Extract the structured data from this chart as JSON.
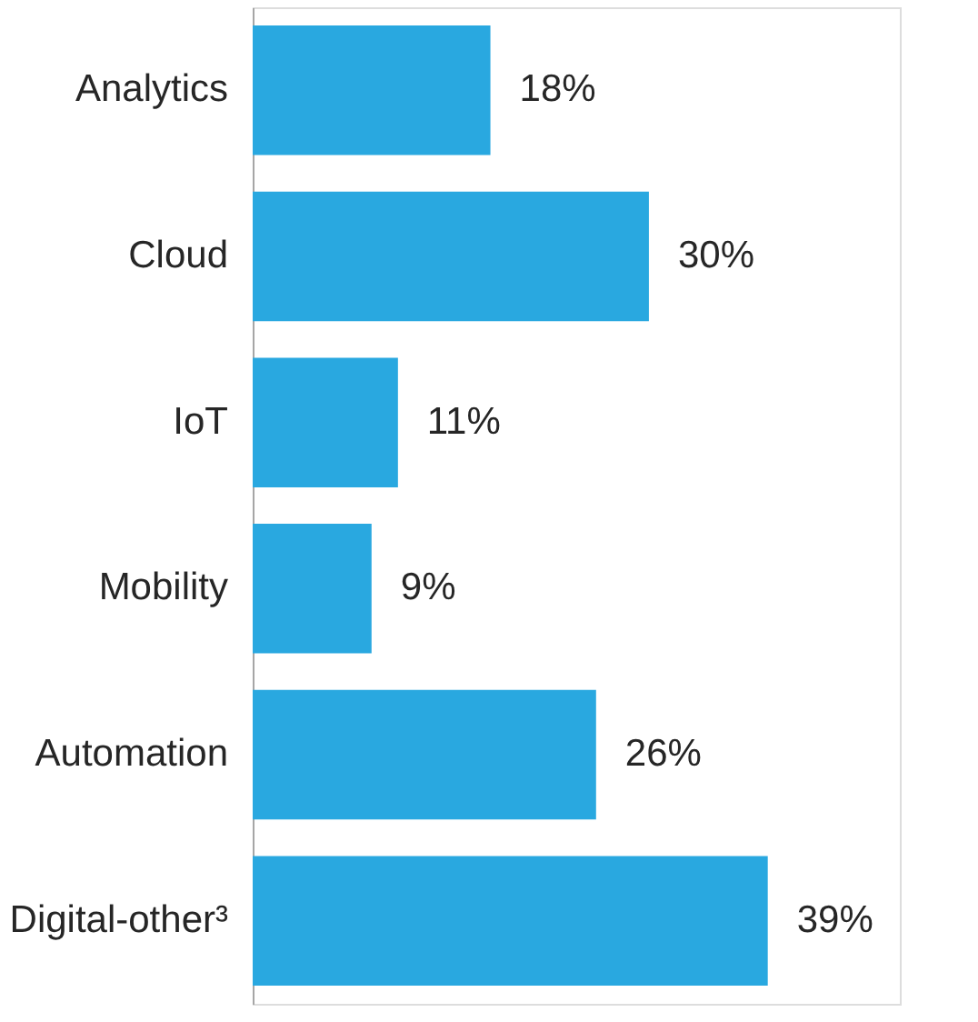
{
  "chart_data": {
    "type": "bar",
    "orientation": "horizontal",
    "categories": [
      "Analytics",
      "Cloud",
      "IoT",
      "Mobility",
      "Automation",
      "Digital-other³"
    ],
    "values": [
      18,
      30,
      11,
      9,
      26,
      39
    ],
    "value_labels": [
      "18%",
      "30%",
      "11%",
      "9%",
      "26%",
      "39%"
    ],
    "color": "#29a8e0",
    "xlim": [
      0,
      49
    ]
  }
}
